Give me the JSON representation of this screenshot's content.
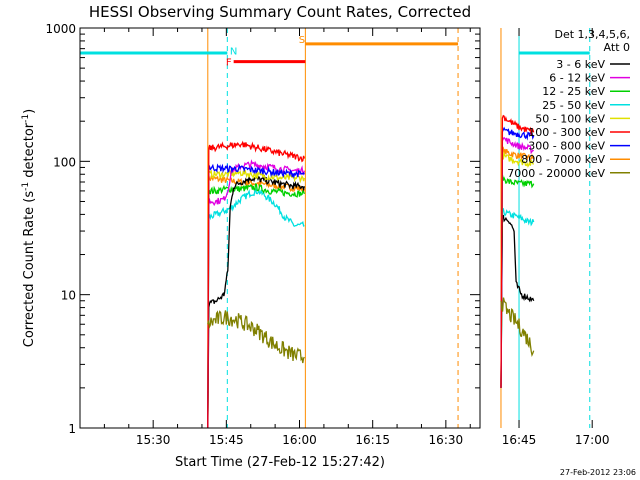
{
  "chart_data": {
    "type": "line",
    "title": "HESSI Observing Summary Count Rates, Corrected",
    "xlabel": "Start Time (27-Feb-12 15:27:42)",
    "ylabel_main": "Corrected Count Rate (s",
    "ylabel_sup1": "-1",
    "ylabel_mid": " detector",
    "ylabel_sup2": "-1",
    "ylabel_end": ")",
    "yscale": "log",
    "ylim": [
      1,
      1000
    ],
    "xlim_min": [
      15,
      97
    ],
    "x_ticks": [
      {
        "min": 30,
        "label": "15:30"
      },
      {
        "min": 45,
        "label": "15:45"
      },
      {
        "min": 60,
        "label": "16:00"
      },
      {
        "min": 75,
        "label": "16:15"
      },
      {
        "min": 90,
        "label": "16:30"
      },
      {
        "min": 105,
        "label": "16:45"
      },
      {
        "min": 120,
        "label": "17:00"
      }
    ],
    "y_ticks": [
      {
        "v": 1,
        "label": "1"
      },
      {
        "v": 10,
        "label": "10"
      },
      {
        "v": 100,
        "label": "100"
      },
      {
        "v": 1000,
        "label": "1000"
      }
    ],
    "legend": {
      "header1": "Det 1,3,4,5,6,",
      "header2": "Att 0",
      "placement": "right"
    },
    "series": [
      {
        "name": "3 - 6 keV",
        "color": "#000000",
        "segments": [
          [
            [
              41.2,
              1
            ],
            [
              41.4,
              8.5
            ],
            [
              43,
              9
            ],
            [
              44.5,
              10
            ],
            [
              45.3,
              15
            ],
            [
              45.8,
              45
            ],
            [
              46.5,
              65
            ],
            [
              48,
              70
            ],
            [
              50,
              75
            ],
            [
              53,
              72
            ],
            [
              56,
              68
            ],
            [
              59,
              65
            ],
            [
              61,
              65
            ]
          ],
          [
            [
              101.3,
              2
            ],
            [
              101.6,
              38
            ],
            [
              103,
              36
            ],
            [
              104,
              30
            ],
            [
              104.4,
              12
            ],
            [
              105.5,
              10
            ],
            [
              107,
              9.5
            ],
            [
              108,
              9
            ]
          ]
        ]
      },
      {
        "name": "6 - 12 keV",
        "color": "#e000e0",
        "segments": [
          [
            [
              41.2,
              1
            ],
            [
              41.4,
              50
            ],
            [
              43,
              50
            ],
            [
              44.5,
              52
            ],
            [
              45.3,
              60
            ],
            [
              46,
              85
            ],
            [
              48,
              92
            ],
            [
              50,
              95
            ],
            [
              53,
              92
            ],
            [
              56,
              88
            ],
            [
              59,
              85
            ],
            [
              61,
              85
            ]
          ],
          [
            [
              101.3,
              2
            ],
            [
              101.6,
              150
            ],
            [
              103,
              140
            ],
            [
              104,
              135
            ],
            [
              105,
              130
            ],
            [
              107,
              125
            ],
            [
              108,
              120
            ]
          ]
        ]
      },
      {
        "name": "12 - 25 keV",
        "color": "#00d000",
        "segments": [
          [
            [
              41.2,
              1
            ],
            [
              41.4,
              60
            ],
            [
              43,
              60
            ],
            [
              45,
              62
            ],
            [
              48,
              62
            ],
            [
              51,
              64
            ],
            [
              54,
              60
            ],
            [
              57,
              58
            ],
            [
              61,
              57
            ]
          ],
          [
            [
              101.3,
              2
            ],
            [
              101.6,
              75
            ],
            [
              103,
              70
            ],
            [
              105,
              68
            ],
            [
              108,
              68
            ]
          ]
        ]
      },
      {
        "name": "25 - 50 keV",
        "color": "#00e0e0",
        "segments": [
          [
            [
              41.2,
              1
            ],
            [
              41.4,
              38
            ],
            [
              43,
              40
            ],
            [
              45,
              43
            ],
            [
              46,
              45
            ],
            [
              48,
              52
            ],
            [
              50,
              58
            ],
            [
              51.5,
              60
            ],
            [
              53,
              55
            ],
            [
              55,
              48
            ],
            [
              57,
              38
            ],
            [
              59,
              33
            ],
            [
              61,
              33
            ]
          ],
          [
            [
              101.3,
              2
            ],
            [
              101.6,
              42
            ],
            [
              103,
              40
            ],
            [
              105,
              38
            ],
            [
              107,
              35
            ],
            [
              108,
              35
            ]
          ]
        ]
      },
      {
        "name": "50 - 100 keV",
        "color": "#e0e000",
        "segments": [
          [
            [
              41.2,
              1
            ],
            [
              41.4,
              80
            ],
            [
              45,
              80
            ],
            [
              48,
              82
            ],
            [
              52,
              78
            ],
            [
              56,
              75
            ],
            [
              61,
              75
            ]
          ],
          [
            [
              101.3,
              2
            ],
            [
              101.6,
              110
            ],
            [
              103,
              105
            ],
            [
              105,
              100
            ],
            [
              108,
              95
            ]
          ]
        ]
      },
      {
        "name": "100 - 300 keV",
        "color": "#ff0000",
        "segments": [
          [
            [
              41.2,
              1
            ],
            [
              41.4,
              125
            ],
            [
              45,
              130
            ],
            [
              48,
              135
            ],
            [
              52,
              125
            ],
            [
              56,
              115
            ],
            [
              61,
              105
            ]
          ],
          [
            [
              101.3,
              2
            ],
            [
              101.6,
              220
            ],
            [
              103,
              200
            ],
            [
              105,
              180
            ],
            [
              107,
              170
            ],
            [
              108,
              165
            ]
          ]
        ]
      },
      {
        "name": "300 - 800 keV",
        "color": "#0000ff",
        "segments": [
          [
            [
              41.2,
              1
            ],
            [
              41.4,
              90
            ],
            [
              45,
              88
            ],
            [
              48,
              88
            ],
            [
              52,
              85
            ],
            [
              56,
              82
            ],
            [
              61,
              80
            ]
          ],
          [
            [
              101.3,
              2
            ],
            [
              101.6,
              170
            ],
            [
              103,
              165
            ],
            [
              105,
              160
            ],
            [
              108,
              155
            ]
          ]
        ]
      },
      {
        "name": "800 - 7000 keV",
        "color": "#ff8c00",
        "segments": [
          [
            [
              41.2,
              1
            ],
            [
              41.4,
              75
            ],
            [
              45,
              72
            ],
            [
              48,
              70
            ],
            [
              52,
              68
            ],
            [
              56,
              65
            ],
            [
              61,
              62
            ]
          ],
          [
            [
              101.3,
              2
            ],
            [
              101.6,
              120
            ],
            [
              103,
              115
            ],
            [
              105,
              110
            ],
            [
              108,
              105
            ]
          ]
        ]
      },
      {
        "name": "7000 - 20000 keV",
        "color": "#808000",
        "segments": [
          [
            [
              41.2,
              6
            ],
            [
              43,
              6.5
            ],
            [
              45,
              6.8
            ],
            [
              47,
              6.5
            ],
            [
              49,
              6
            ],
            [
              51,
              5.5
            ],
            [
              53,
              4.8
            ],
            [
              55,
              4.2
            ],
            [
              57,
              3.8
            ],
            [
              59,
              3.5
            ],
            [
              61,
              3.4
            ]
          ],
          [
            [
              101.3,
              9
            ],
            [
              102.5,
              7.5
            ],
            [
              104,
              6.5
            ],
            [
              105.5,
              5.5
            ],
            [
              107,
              4.5
            ],
            [
              108,
              3.8
            ]
          ]
        ]
      }
    ],
    "annotations": {
      "blue_spike": {
        "min": 41.2,
        "v": [
          1,
          1.9
        ],
        "color": "#0000ff"
      },
      "orbit_flags": [
        {
          "min": [
            15,
            45.2
          ],
          "v": 650,
          "color": "#00e0e0"
        },
        {
          "min": [
            105,
            119.5
          ],
          "v": 650,
          "color": "#00e0e0"
        },
        {
          "label": "N",
          "label_min": 46.5,
          "label_v": 680,
          "color": "#00e0e0"
        },
        {
          "min": [
            46.5,
            61.2
          ],
          "v": 560,
          "color": "#ff0000",
          "label": "F",
          "label_min": 45.5,
          "label_v": 560
        },
        {
          "min": [
            61.2,
            92.5
          ],
          "v": 760,
          "color": "#ff8c00",
          "label": "S",
          "label_min": 60.5,
          "label_v": 830
        }
      ],
      "vlines_solid": [
        {
          "min": 41.2,
          "color": "#ff8c00"
        },
        {
          "min": 61.2,
          "color": "#ff8c00"
        },
        {
          "min": 101.3,
          "color": "#ff8c00"
        },
        {
          "min": 15,
          "color": "#00e0e0"
        },
        {
          "min": 105,
          "color": "#00e0e0"
        }
      ],
      "vlines_dashed": [
        {
          "min": 45.2,
          "color": "#00e0e0"
        },
        {
          "min": 92.5,
          "color": "#ff8c00"
        },
        {
          "min": 119.5,
          "color": "#00e0e0"
        }
      ]
    }
  },
  "footer": {
    "datestamp": "27-Feb-2012 23:06"
  }
}
